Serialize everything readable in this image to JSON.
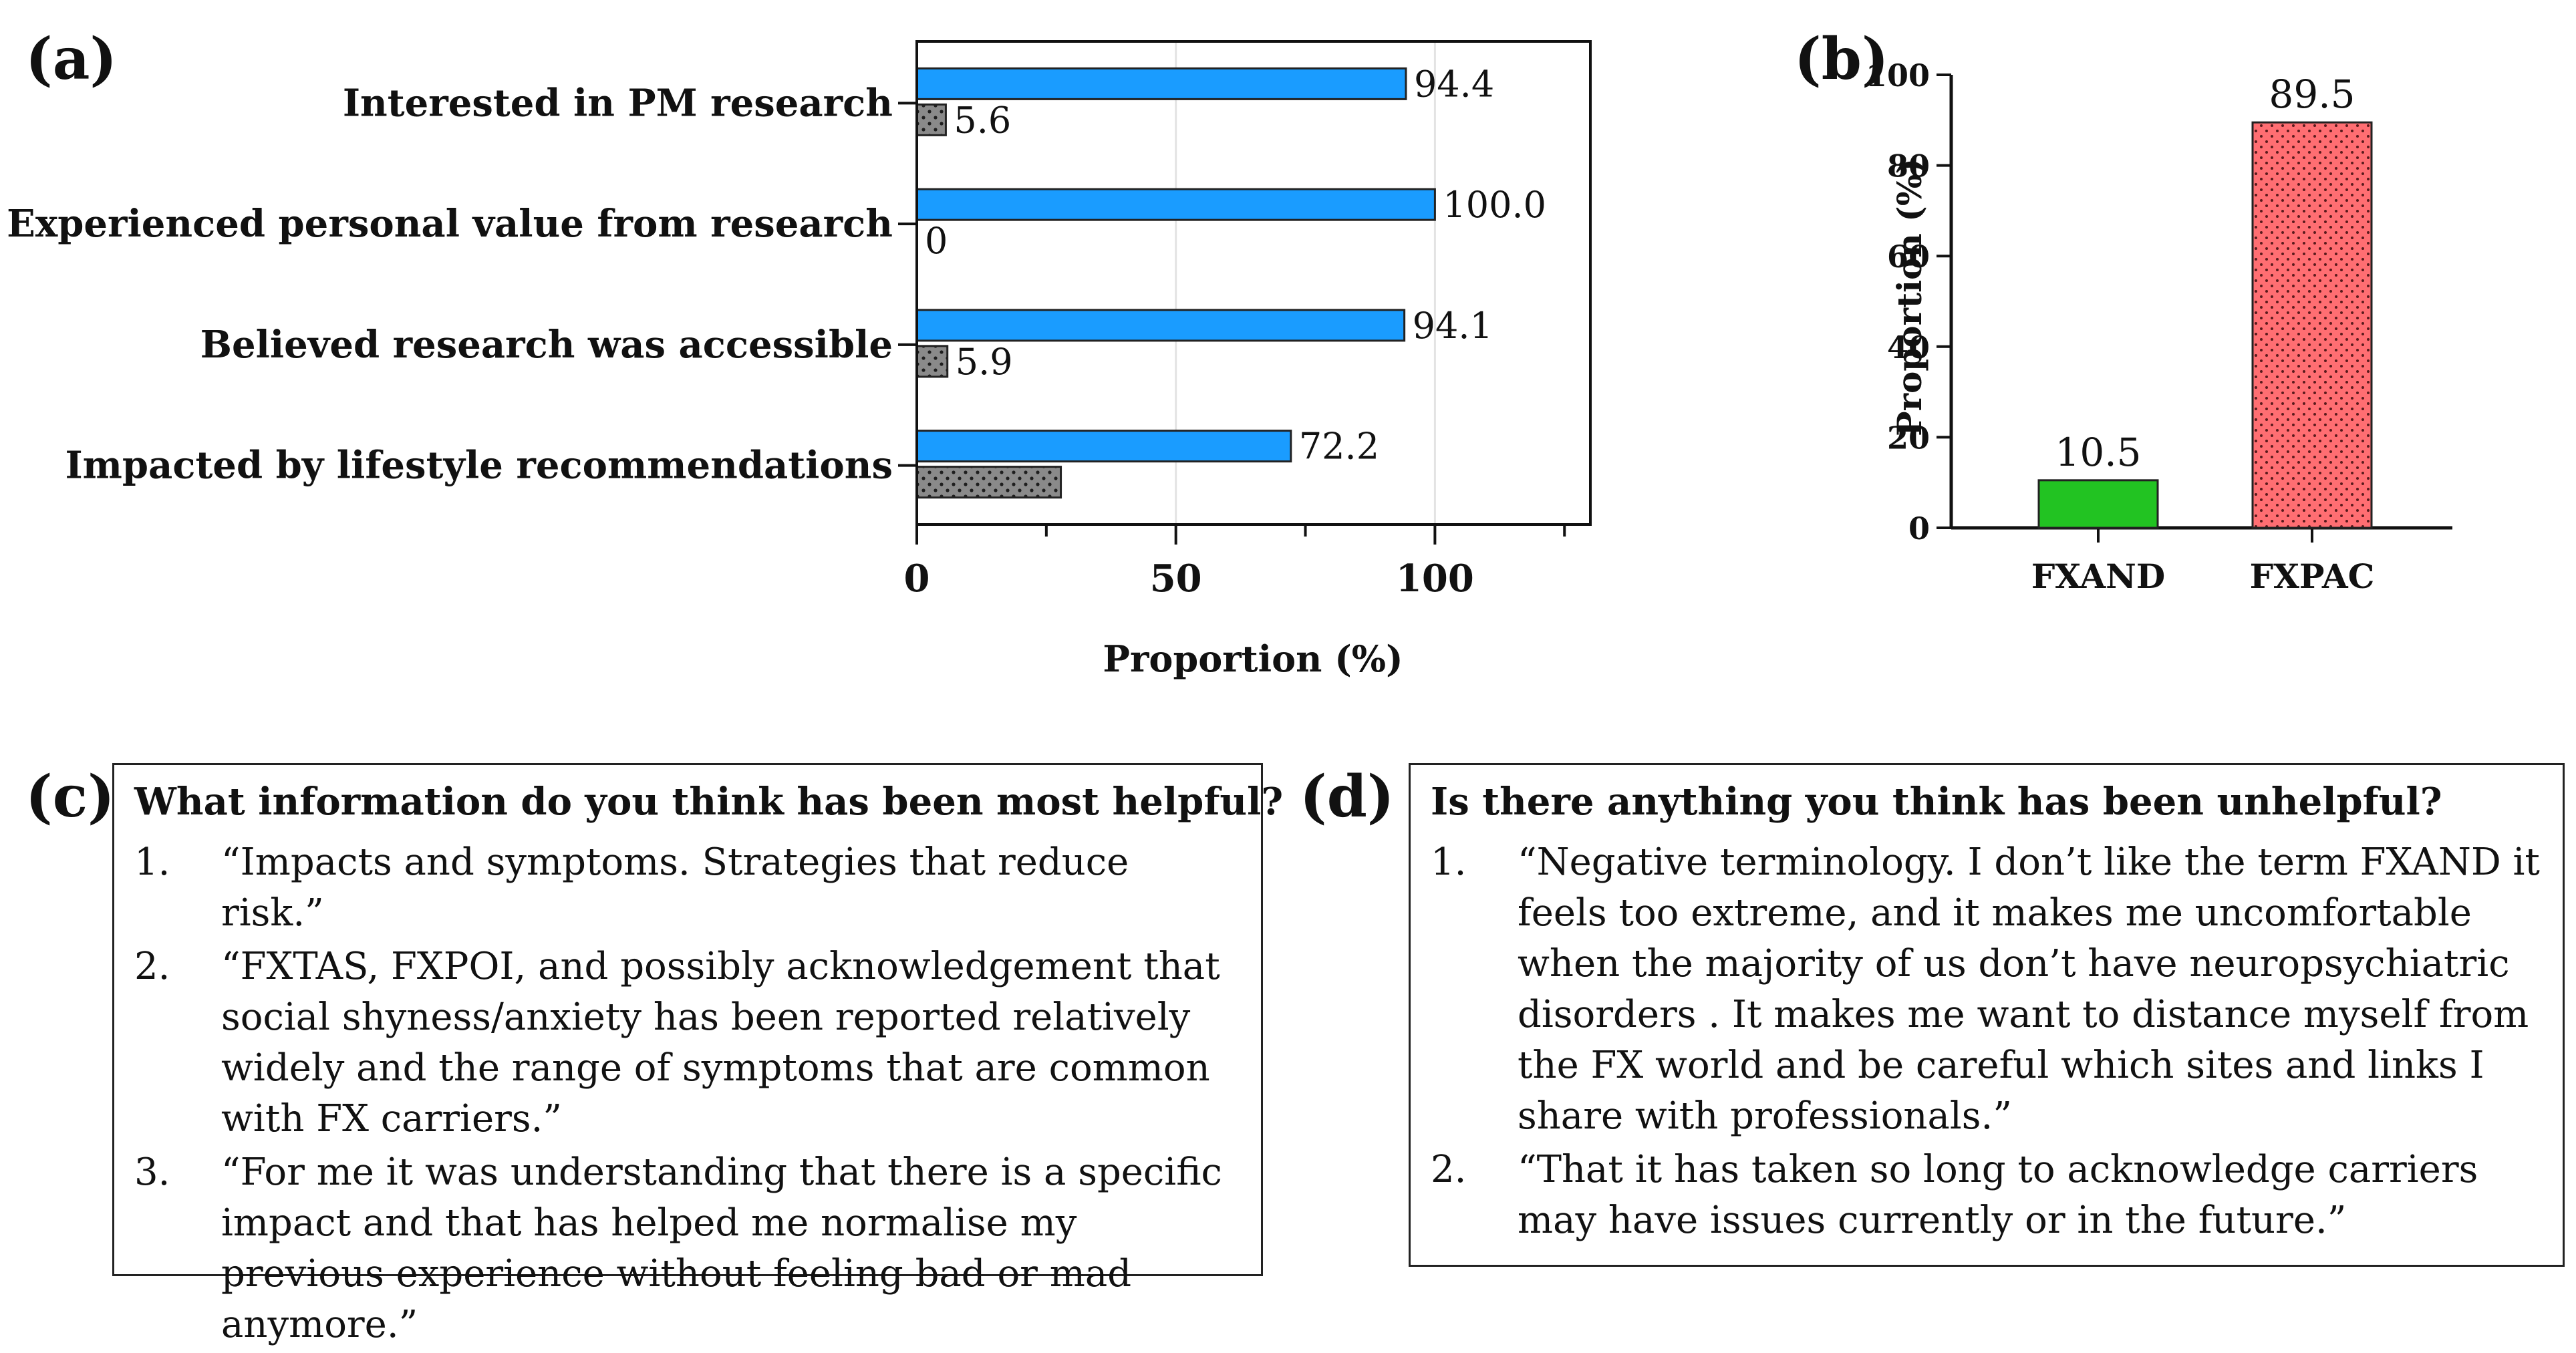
{
  "panels": {
    "a": "(a)",
    "b": "(b)",
    "c": "(c)",
    "d": "(d)"
  },
  "chart_data": [
    {
      "id": "a",
      "type": "bar",
      "orientation": "horizontal",
      "categories": [
        "Interested in PM research",
        "Experienced personal value from research",
        "Believed research was accessible",
        "Impacted by lifestyle recommendations"
      ],
      "series": [
        {
          "values": [
            94.4,
            100.0,
            94.1,
            72.2
          ],
          "labels": [
            "94.4",
            "100.0",
            "94.1",
            "72.2"
          ],
          "color": "#1a9cff",
          "pattern": "solid"
        },
        {
          "values": [
            5.6,
            0,
            5.9,
            27.8
          ],
          "labels": [
            "5.6",
            "0",
            "5.9",
            ""
          ],
          "color": "#8a8a8a",
          "pattern": "dots"
        }
      ],
      "xlabel": "Proportion (%)",
      "xlim": [
        0,
        130
      ],
      "xticks": [
        0,
        50,
        100
      ],
      "xtick_labels": [
        "0",
        "50",
        "100"
      ],
      "grid": true
    },
    {
      "id": "b",
      "type": "bar",
      "categories": [
        "FXAND",
        "FXPAC"
      ],
      "values": [
        10.5,
        89.5
      ],
      "labels": [
        "10.5",
        "89.5"
      ],
      "colors": [
        "#22c322",
        "#ff6e72"
      ],
      "patterns": [
        "solid",
        "dots"
      ],
      "ylabel": "Proportion (%)",
      "ylim": [
        0,
        100
      ],
      "yticks": [
        0,
        20,
        40,
        60,
        80,
        100
      ],
      "ytick_labels": [
        "0",
        "20",
        "40",
        "60",
        "80",
        "100"
      ]
    }
  ],
  "box_c": {
    "title": "What information do you think has been most helpful?",
    "items": [
      {
        "num": "1.",
        "text": "“Impacts and symptoms. Strategies that reduce risk.”"
      },
      {
        "num": "2.",
        "text": "“FXTAS, FXPOI, and possibly acknowledgement that social shyness/anxiety has been reported relatively widely and the range of symptoms that are common with FX carriers.”"
      },
      {
        "num": "3.",
        "text": "“For me it was understanding that there is a specific impact and that has helped me normalise my previous experience without feeling bad or mad anymore.”"
      }
    ]
  },
  "box_d": {
    "title": "Is there anything you think has been unhelpful?",
    "items": [
      {
        "num": "1.",
        "text": "“Negative terminology. I don’t like the term FXAND it feels too extreme, and it makes me uncomfortable when the majority of us don’t have neuropsychiatric disorders . It makes me want to distance myself from the FX world and be careful which sites and links I share with professionals.”"
      },
      {
        "num": "2.",
        "text": "“That it has taken so long to acknowledge carriers may have issues currently or in the future.”"
      }
    ]
  }
}
